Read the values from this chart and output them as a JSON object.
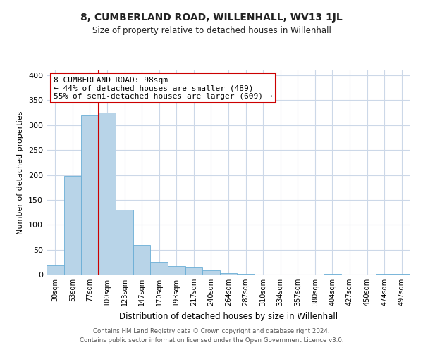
{
  "title": "8, CUMBERLAND ROAD, WILLENHALL, WV13 1JL",
  "subtitle": "Size of property relative to detached houses in Willenhall",
  "xlabel": "Distribution of detached houses by size in Willenhall",
  "ylabel": "Number of detached properties",
  "bar_values": [
    19,
    198,
    320,
    325,
    130,
    60,
    25,
    17,
    15,
    8,
    3,
    1,
    0,
    0,
    0,
    0,
    1,
    0,
    0,
    2,
    2
  ],
  "bin_labels": [
    "30sqm",
    "53sqm",
    "77sqm",
    "100sqm",
    "123sqm",
    "147sqm",
    "170sqm",
    "193sqm",
    "217sqm",
    "240sqm",
    "264sqm",
    "287sqm",
    "310sqm",
    "334sqm",
    "357sqm",
    "380sqm",
    "404sqm",
    "427sqm",
    "450sqm",
    "474sqm",
    "497sqm"
  ],
  "annotation_title": "8 CUMBERLAND ROAD: 98sqm",
  "annotation_line1": "← 44% of detached houses are smaller (489)",
  "annotation_line2": "55% of semi-detached houses are larger (609) →",
  "bar_color": "#b8d4e8",
  "bar_edge_color": "#6aaed6",
  "line_color": "#cc0000",
  "annotation_box_edge": "#cc0000",
  "ylim": [
    0,
    410
  ],
  "yticks": [
    0,
    50,
    100,
    150,
    200,
    250,
    300,
    350,
    400
  ],
  "background_color": "#ffffff",
  "grid_color": "#ccd8e8",
  "footer_line1": "Contains HM Land Registry data © Crown copyright and database right 2024.",
  "footer_line2": "Contains public sector information licensed under the Open Government Licence v3.0."
}
